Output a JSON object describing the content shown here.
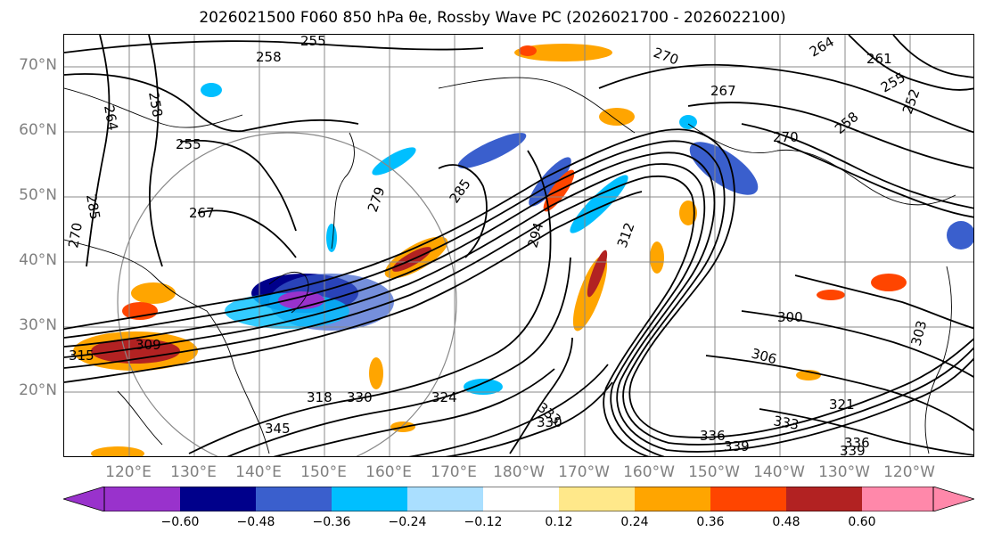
{
  "title": "2026021500 F060 850 hPa θe, Rossby Wave PC (2026021700 - 2026022100)",
  "map": {
    "lat_labels": [
      "70°N",
      "60°N",
      "50°N",
      "40°N",
      "30°N",
      "20°N"
    ],
    "lon_labels": [
      "120°E",
      "130°E",
      "140°E",
      "150°E",
      "160°E",
      "170°E",
      "180°W",
      "170°W",
      "160°W",
      "150°W",
      "140°W",
      "130°W",
      "120°W"
    ],
    "contour_labels": [
      "255",
      "258",
      "264",
      "258",
      "255",
      "270",
      "267",
      "279",
      "285",
      "294",
      "312",
      "270",
      "264",
      "261",
      "267",
      "255",
      "252",
      "258",
      "270",
      "285",
      "318",
      "330",
      "324",
      "333",
      "330",
      "300",
      "306",
      "303",
      "321",
      "336",
      "339",
      "333",
      "336",
      "339",
      "309",
      "315",
      "345"
    ]
  },
  "colorbar": {
    "colors": [
      "#9932cc",
      "#00008b",
      "#3a5fcd",
      "#00bfff",
      "#aadfff",
      "#ffffff",
      "#ffe88a",
      "#ffa500",
      "#ff4500",
      "#b22222",
      "#ff88aa"
    ],
    "tick_labels": [
      "−0.60",
      "−0.48",
      "−0.36",
      "−0.24",
      "−0.12",
      "0.12",
      "0.24",
      "0.36",
      "0.48",
      "0.60"
    ]
  }
}
